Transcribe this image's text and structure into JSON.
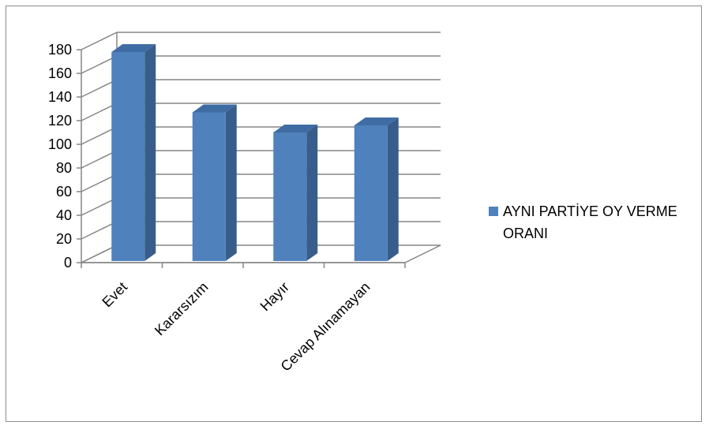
{
  "chart_data": {
    "type": "bar",
    "style": "3d-column",
    "categories": [
      "Evet",
      "Kararsızım",
      "Hayır",
      "Cevap Alınamayan"
    ],
    "series": [
      {
        "name": "AYNI PARTİYE OY VERME ORANI",
        "values": [
          178,
          127,
          110,
          116
        ]
      }
    ],
    "ylim": [
      0,
      180
    ],
    "yticks": [
      "0",
      "20",
      "40",
      "60",
      "80",
      "100",
      "120",
      "140",
      "160",
      "180"
    ],
    "grid": true,
    "legend_position": "right",
    "colors": {
      "bar_front": "#4f81bd",
      "bar_side": "#385d8a",
      "bar_top": "#3f6ca3",
      "grid": "#868686"
    }
  }
}
